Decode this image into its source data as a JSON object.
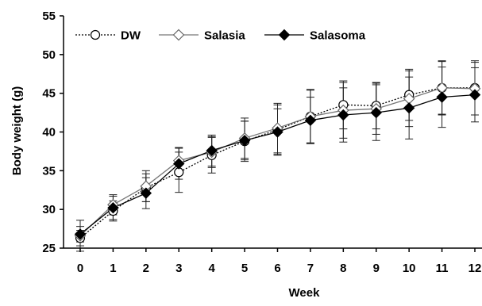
{
  "chart_data": {
    "type": "line",
    "title": "",
    "xlabel": "Week",
    "ylabel": "Body weight (g)",
    "x": [
      0,
      1,
      2,
      3,
      4,
      5,
      6,
      7,
      8,
      9,
      10,
      11,
      12
    ],
    "x_tick_labels": [
      "0",
      "1",
      "2",
      "3",
      "4",
      "5",
      "6",
      "7",
      "8",
      "9",
      "10",
      "11",
      "12"
    ],
    "ylim": [
      25,
      55
    ],
    "y_ticks": [
      25,
      30,
      35,
      40,
      45,
      50,
      55
    ],
    "y_tick_labels": [
      "25",
      "30",
      "35",
      "40",
      "45",
      "50",
      "55"
    ],
    "grid": false,
    "legend_position": "top-left",
    "series": [
      {
        "name": "DW",
        "marker": "circle-open",
        "line_style": "dotted",
        "color": "#000000",
        "values": [
          26.3,
          29.8,
          32.8,
          34.8,
          37.0,
          38.8,
          40.3,
          42.0,
          43.5,
          43.4,
          44.8,
          45.7,
          45.7
        ],
        "error": [
          1.0,
          1.3,
          1.8,
          2.6,
          2.3,
          2.6,
          3.2,
          3.5,
          3.1,
          3.0,
          3.3,
          3.5,
          3.5
        ]
      },
      {
        "name": "Salasia",
        "marker": "diamond-open",
        "line_style": "solid",
        "color": "#777777",
        "values": [
          26.6,
          30.6,
          33.0,
          36.3,
          37.4,
          39.2,
          40.5,
          42.0,
          42.8,
          43.0,
          44.3,
          45.7,
          45.6
        ],
        "error": [
          2.0,
          1.3,
          2.0,
          1.7,
          2.0,
          2.6,
          3.2,
          3.4,
          3.6,
          3.3,
          3.6,
          3.4,
          3.4
        ]
      },
      {
        "name": "Salasoma",
        "marker": "diamond-filled",
        "line_style": "solid",
        "color": "#000000",
        "values": [
          26.8,
          30.2,
          32.1,
          35.9,
          37.6,
          38.9,
          40.0,
          41.5,
          42.2,
          42.5,
          43.1,
          44.5,
          44.8
        ],
        "error": [
          1.0,
          1.5,
          2.0,
          2.0,
          2.0,
          2.5,
          3.0,
          3.0,
          3.5,
          3.6,
          4.0,
          3.9,
          3.5
        ]
      }
    ]
  }
}
